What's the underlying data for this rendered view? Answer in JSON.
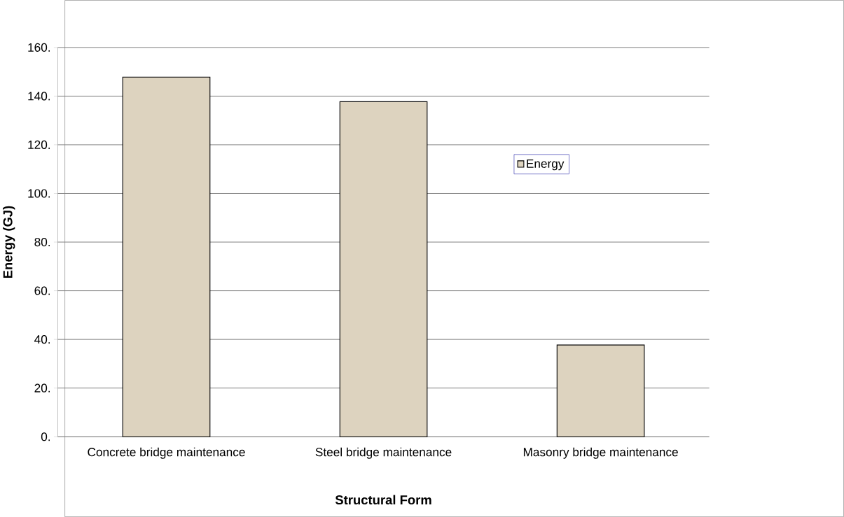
{
  "chart_data": {
    "type": "bar",
    "xlabel": "Structural Form",
    "ylabel": "Energy (GJ)",
    "categories": [
      "Concrete bridge maintenance",
      "Steel bridge maintenance",
      "Masonry bridge maintenance"
    ],
    "series": [
      {
        "name": "Energy",
        "color": "#ddd3bf",
        "values": [
          147.8,
          137.7,
          37.7
        ]
      }
    ],
    "ylim": [
      0,
      160
    ],
    "yticks": [
      {
        "value": 0,
        "label": "0."
      },
      {
        "value": 20,
        "label": "20."
      },
      {
        "value": 40,
        "label": "40."
      },
      {
        "value": 60,
        "label": "60."
      },
      {
        "value": 80,
        "label": "80."
      },
      {
        "value": 100,
        "label": "100."
      },
      {
        "value": 120,
        "label": "120."
      },
      {
        "value": 140,
        "label": "140."
      },
      {
        "value": 160,
        "label": "160."
      }
    ],
    "grid": "y",
    "legend": "right"
  }
}
